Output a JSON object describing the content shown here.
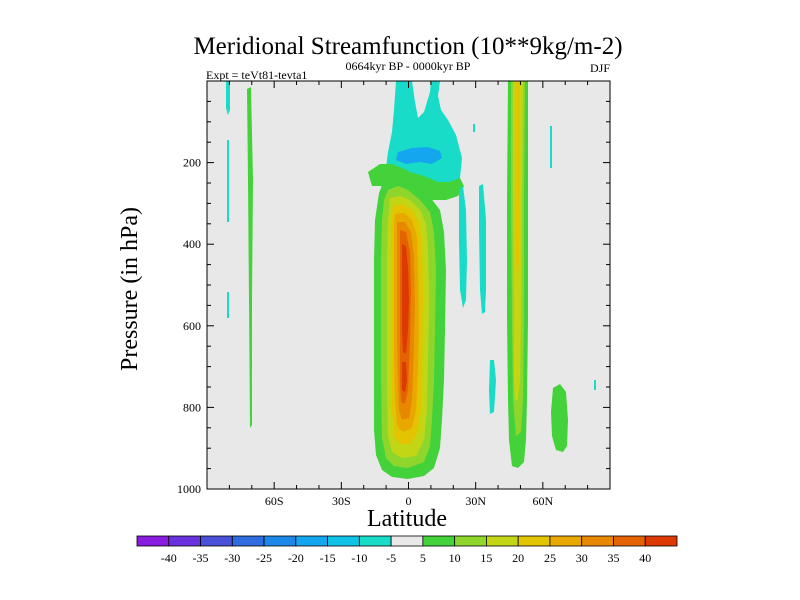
{
  "chart_data": {
    "type": "contour",
    "title": "Meridional Streamfunction (10**9kg/m-2)",
    "subtitle": "0664kyr BP - 0000kyr BP",
    "left_string": "Expt = teVt81-tevta1",
    "right_string": "DJF",
    "xlabel": "Latitude",
    "ylabel": "Pressure (in hPa)",
    "xlim": [
      -90,
      90
    ],
    "ylim": [
      1000,
      0
    ],
    "x_ticks": [
      {
        "value": -60,
        "label": "60S"
      },
      {
        "value": -30,
        "label": "30S"
      },
      {
        "value": 0,
        "label": "0"
      },
      {
        "value": 30,
        "label": "30N"
      },
      {
        "value": 60,
        "label": "60N"
      }
    ],
    "y_ticks": [
      {
        "value": 200,
        "label": "200"
      },
      {
        "value": 400,
        "label": "400"
      },
      {
        "value": 600,
        "label": "600"
      },
      {
        "value": 800,
        "label": "800"
      },
      {
        "value": 1000,
        "label": "1000"
      }
    ],
    "colorbar": {
      "levels": [
        -40,
        -35,
        -30,
        -25,
        -20,
        -15,
        -10,
        -5,
        5,
        10,
        15,
        20,
        25,
        30,
        35,
        40
      ],
      "colors": [
        "#8a1ce0",
        "#6a32dc",
        "#4a50d8",
        "#2e6ce0",
        "#1e88e8",
        "#14a6ee",
        "#10c2e6",
        "#18dcc8",
        "#e8e8e8",
        "#44d23a",
        "#8ed62c",
        "#c2d616",
        "#e2c400",
        "#e8a800",
        "#e88800",
        "#e46200",
        "#dc3a00"
      ]
    },
    "features": [
      {
        "name": "tropical-positive-cell",
        "lat_range": [
          -14,
          12
        ],
        "p_range": [
          160,
          990
        ],
        "peak_value": 40,
        "peak_lat": 0,
        "peak_p": 520
      },
      {
        "name": "upper-negative-cell",
        "lat_range": [
          -12,
          20
        ],
        "p_range": [
          0,
          250
        ],
        "min_value": -10,
        "min_lat": 3,
        "min_p": 185
      },
      {
        "name": "nh-positive-streak",
        "lat_range": [
          46,
          53
        ],
        "p_range": [
          0,
          960
        ],
        "peak_value": 20
      },
      {
        "name": "nh-highlat-positive",
        "lat_range": [
          64,
          72
        ],
        "p_range": [
          720,
          940
        ],
        "peak_value": 5
      }
    ]
  }
}
